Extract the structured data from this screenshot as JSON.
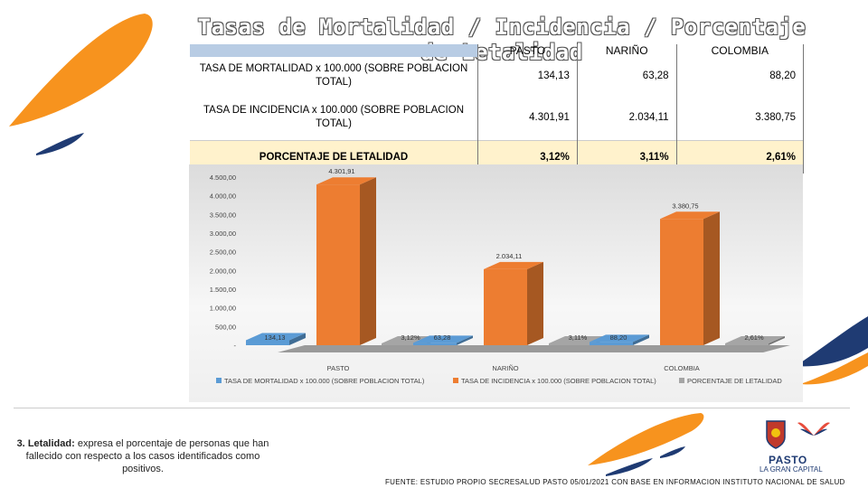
{
  "title": "Tasas de Mortalidad / Incidencia / Porcentaje de Letalidad",
  "table": {
    "columns": [
      "PASTO",
      "NARIÑO",
      "COLOMBIA"
    ],
    "rows": [
      {
        "label": "TASA DE MORTALIDAD x 100.000 (SOBRE POBLACION TOTAL)",
        "values": [
          "134,13",
          "63,28",
          "88,20"
        ]
      },
      {
        "label": "TASA DE INCIDENCIA x 100.000 (SOBRE POBLACION TOTAL)",
        "values": [
          "4.301,91",
          "2.034,11",
          "3.380,75"
        ]
      },
      {
        "label": "PORCENTAJE DE LETALIDAD",
        "values": [
          "3,12%",
          "3,11%",
          "2,61%"
        ]
      }
    ]
  },
  "chart_data": {
    "type": "bar",
    "categories": [
      "PASTO",
      "NARIÑO",
      "COLOMBIA"
    ],
    "series": [
      {
        "name": "TASA DE MORTALIDAD x 100.000 (SOBRE POBLACION TOTAL)",
        "values": [
          134.13,
          63.28,
          88.2
        ],
        "labels": [
          "134,13",
          "63,28",
          "88,20"
        ],
        "color": "#5b9bd5"
      },
      {
        "name": "TASA DE INCIDENCIA x 100.000 (SOBRE POBLACION TOTAL)",
        "values": [
          4301.91,
          2034.11,
          3380.75
        ],
        "labels": [
          "4.301,91",
          "2.034,11",
          "3.380,75"
        ],
        "color": "#ed7d31"
      },
      {
        "name": "PORCENTAJE DE LETALIDAD",
        "values": [
          3.12,
          3.11,
          2.61
        ],
        "labels": [
          "3,12%",
          "3,11%",
          "2,61%"
        ],
        "color": "#a5a5a5"
      }
    ],
    "ylim": [
      0,
      4500
    ],
    "yticks": [
      "4.500,00",
      "4.000,00",
      "3.500,00",
      "3.000,00",
      "2.500,00",
      "2.000,00",
      "1.500,00",
      "1.000,00",
      "500,00",
      "-"
    ],
    "ytick_values": [
      4500,
      4000,
      3500,
      3000,
      2500,
      2000,
      1500,
      1000,
      500,
      0
    ],
    "style": "3d-clustered-column",
    "legend_position": "bottom"
  },
  "note": {
    "number": "3.",
    "term": "Letalidad:",
    "text": "expresa el porcentaje de personas que han fallecido con respecto a los casos identificados como positivos."
  },
  "source": "FUENTE: ESTUDIO PROPIO SECRESALUD PASTO 05/01/2021 CON BASE EN INFORMACION INSTITUTO NACIONAL DE SALUD",
  "logo": {
    "name": "PASTO",
    "subtitle": "LA GRAN CAPITAL"
  },
  "colors": {
    "accent_orange": "#f7931e",
    "accent_navy": "#1f3b73"
  }
}
